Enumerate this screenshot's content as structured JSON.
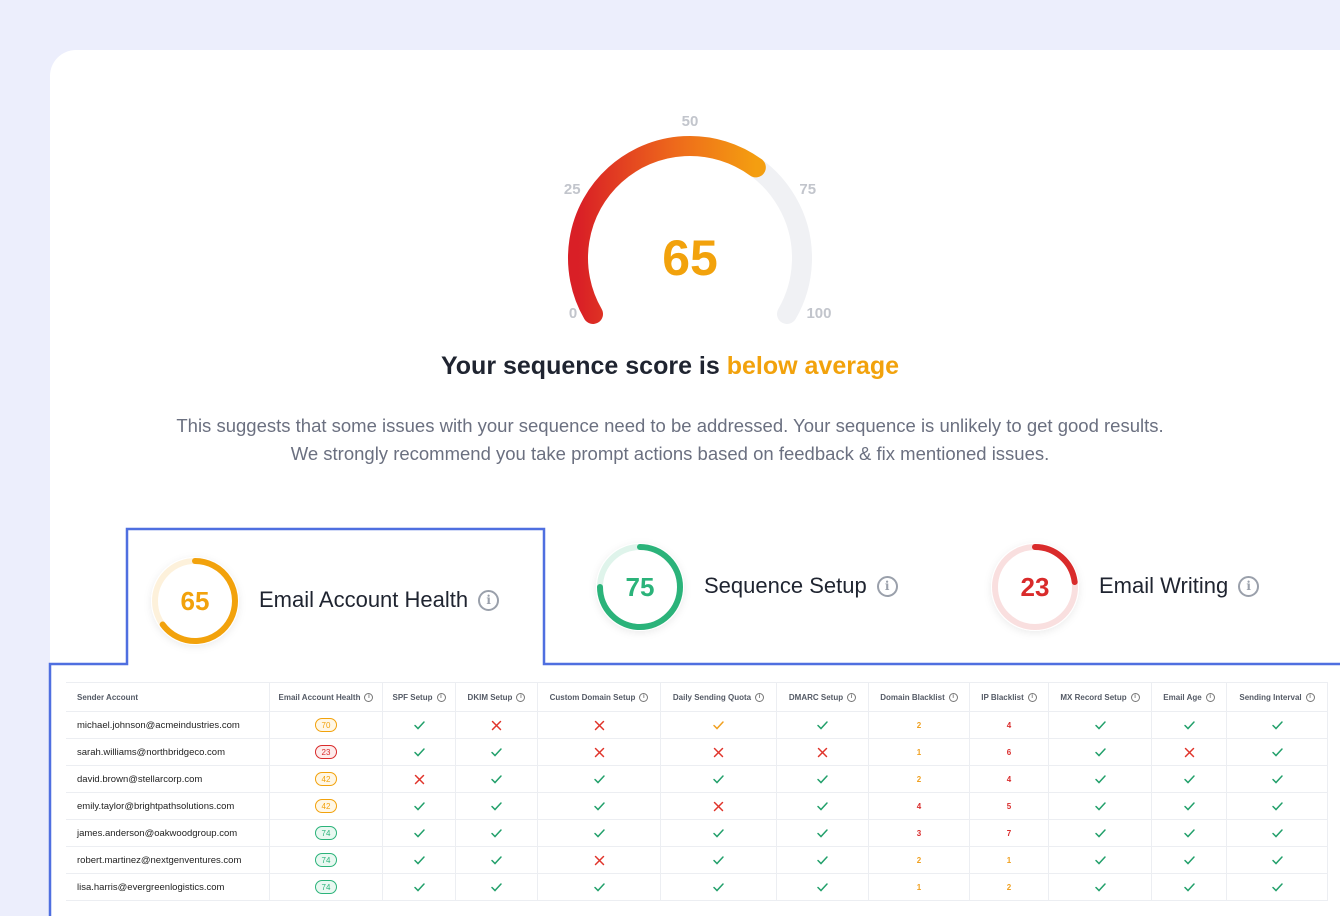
{
  "gauge": {
    "value": 65,
    "ticks": [
      0,
      25,
      50,
      75,
      100
    ]
  },
  "headline": {
    "prefix": "Your sequence score is",
    "rating": "below average"
  },
  "description": [
    "This suggests that some issues with your sequence need to be addressed. Your sequence is unlikely to get good results.",
    "We strongly recommend you take prompt actions based on feedback & fix mentioned issues."
  ],
  "cards": [
    {
      "score": 65,
      "label": "Email Account Health",
      "color": "#f2a20c"
    },
    {
      "score": 75,
      "label": "Sequence Setup",
      "color": "#2bb37a"
    },
    {
      "score": 23,
      "label": "Email Writing",
      "color": "#d92b2b"
    }
  ],
  "table": {
    "headers": [
      "Sender Account",
      "Email Account Health",
      "SPF Setup",
      "DKIM Setup",
      "Custom Domain Setup",
      "Daily Sending Quota",
      "DMARC Setup",
      "Domain Blacklist",
      "IP Blacklist",
      "MX Record Setup",
      "Email Age",
      "Sending Interval"
    ],
    "rows": [
      [
        "michael.johnson@acmeindustries.com",
        70,
        "pass",
        "fail",
        "fail",
        "warn",
        "pass",
        2,
        4,
        "pass",
        "pass",
        "pass"
      ],
      [
        "sarah.williams@northbridgeco.com",
        23,
        "pass",
        "pass",
        "fail",
        "fail",
        "fail",
        1,
        6,
        "pass",
        "fail",
        "pass"
      ],
      [
        "david.brown@stellarcorp.com",
        42,
        "fail",
        "pass",
        "pass",
        "pass",
        "pass",
        2,
        4,
        "pass",
        "pass",
        "pass"
      ],
      [
        "emily.taylor@brightpathsolutions.com",
        42,
        "pass",
        "pass",
        "pass",
        "fail",
        "pass",
        4,
        5,
        "pass",
        "pass",
        "pass"
      ],
      [
        "james.anderson@oakwoodgroup.com",
        74,
        "pass",
        "pass",
        "pass",
        "pass",
        "pass",
        3,
        7,
        "pass",
        "pass",
        "pass"
      ],
      [
        "robert.martinez@nextgenventures.com",
        74,
        "pass",
        "pass",
        "fail",
        "pass",
        "pass",
        2,
        1,
        "pass",
        "pass",
        "pass"
      ],
      [
        "lisa.harris@evergreenlogistics.com",
        74,
        "pass",
        "pass",
        "pass",
        "pass",
        "pass",
        1,
        2,
        "pass",
        "pass",
        "pass"
      ]
    ]
  }
}
